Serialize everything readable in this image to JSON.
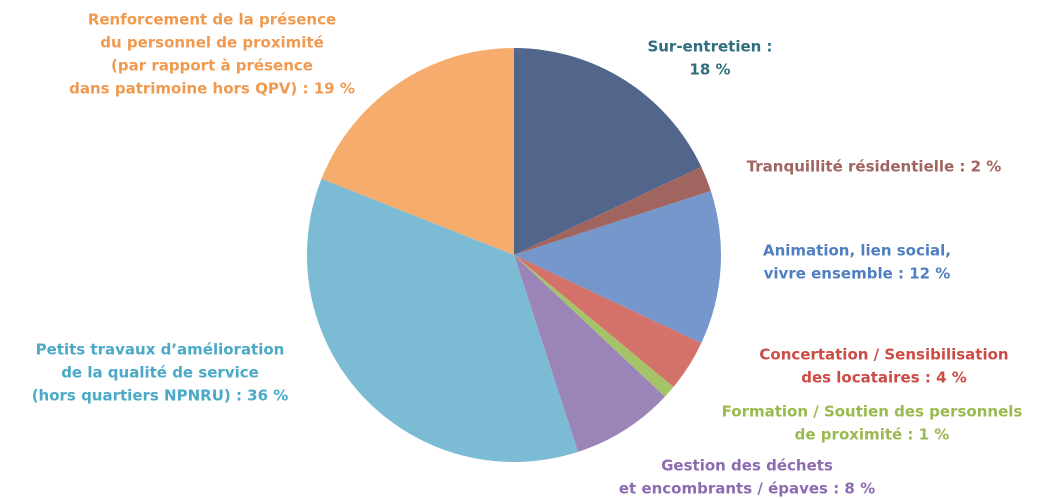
{
  "chart_data": {
    "type": "pie",
    "categories": [
      [
        "Sur-entretien :",
        "18 %"
      ],
      [
        "Tranquillité résidentielle : 2 %"
      ],
      [
        "Animation, lien social,",
        "vivre ensemble : 12 %"
      ],
      [
        "Concertation / Sensibilisation",
        "des locataires : 4 %"
      ],
      [
        "Formation / Soutien des personnels",
        "de proximité : 1 %"
      ],
      [
        "Gestion des déchets",
        "et encombrants / épaves : 8 %"
      ],
      [
        "Petits travaux d’amélioration",
        "de la qualité de service",
        "(hors quartiers NPNRU) : 36 %"
      ],
      [
        "Renforcement de la présence",
        "du personnel de proximité",
        "(par rapport à présence",
        "dans patrimoine hors QPV) : 19 %"
      ]
    ],
    "values": [
      18,
      2,
      12,
      4,
      1,
      8,
      36,
      19
    ],
    "colors": [
      "#52668c",
      "#a0655f",
      "#7697cb",
      "#d4726a",
      "#a5c46a",
      "#9b85b8",
      "#7bbbd3",
      "#f5ac6c"
    ],
    "label_colors": [
      "#2f6e7d",
      "#a0655f",
      "#4f7fc0",
      "#cc4b45",
      "#9ab94f",
      "#8c6bb0",
      "#4ba9c8",
      "#f09a50"
    ]
  }
}
